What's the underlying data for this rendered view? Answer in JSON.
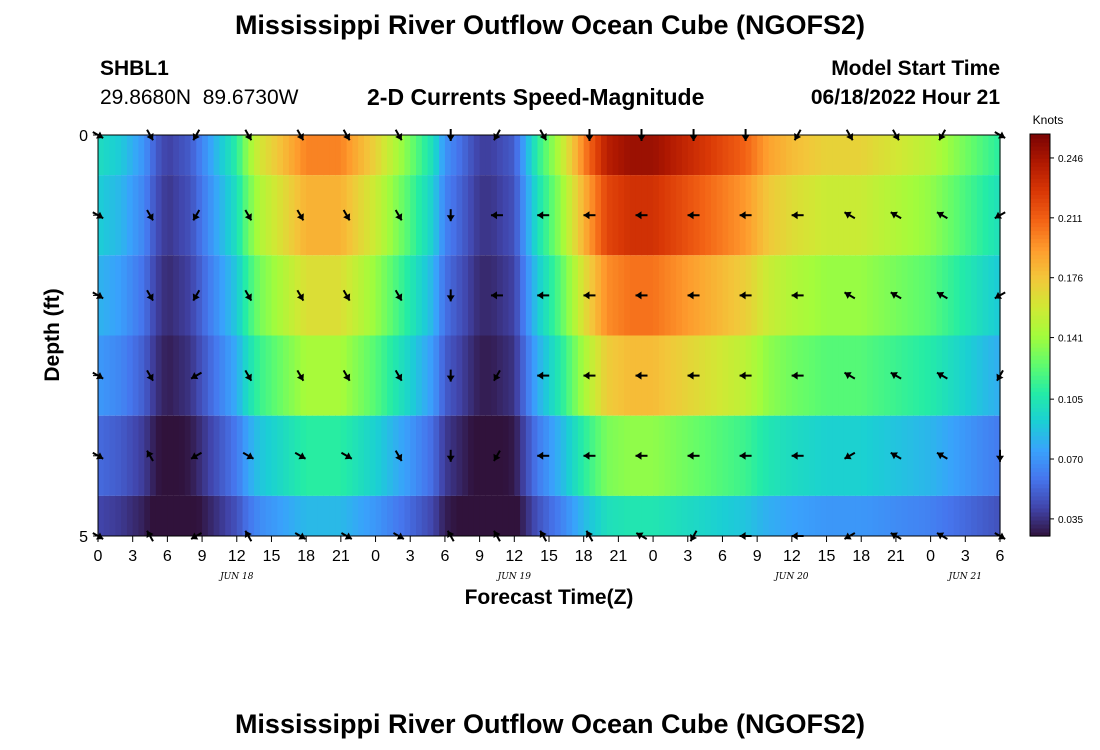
{
  "page": {
    "title": "Mississippi River Outflow Ocean Cube (NGOFS2)",
    "title_repeat": "Mississippi River Outflow Ocean Cube (NGOFS2)",
    "station_id": "SHBL1",
    "station_coords": "29.8680N  89.6730W",
    "chart_heading": "2-D Currents Speed-Magnitude",
    "model_start_label": "Model Start Time",
    "model_start_value": "06/18/2022 Hour 21"
  },
  "colors": {
    "colormap": [
      "#30123b",
      "#4145ab",
      "#4675ed",
      "#39a2fc",
      "#1bcfd4",
      "#24eca6",
      "#61fc6c",
      "#a4fc3b",
      "#d1e834",
      "#f3c63a",
      "#fe9b2d",
      "#f36315",
      "#d93806",
      "#b11901",
      "#7a0403"
    ],
    "arrow": "#000000"
  },
  "chart_data": {
    "type": "heatmap",
    "title": "2-D Currents Speed-Magnitude",
    "xlabel": "Forecast Time(Z)",
    "ylabel": "Depth (ft)",
    "y_ticks": [
      "0",
      "5"
    ],
    "ylim": [
      0,
      5
    ],
    "x_tick_labels": [
      "0",
      "3",
      "6",
      "9",
      "12",
      "15",
      "18",
      "21",
      "0",
      "3",
      "6",
      "9",
      "12",
      "15",
      "18",
      "21",
      "0",
      "3",
      "6",
      "9",
      "12",
      "15",
      "18",
      "21",
      "0",
      "3",
      "6"
    ],
    "x_tick_hours": [
      0,
      3,
      6,
      9,
      12,
      15,
      18,
      21,
      24,
      27,
      30,
      33,
      36,
      39,
      42,
      45,
      48,
      51,
      54,
      57,
      60,
      63,
      66,
      69,
      72,
      75,
      78
    ],
    "xlim_hours": [
      0,
      78
    ],
    "date_labels": [
      {
        "text": "JUN 18",
        "hour": 12
      },
      {
        "text": "JUN 19",
        "hour": 36
      },
      {
        "text": "JUN 20",
        "hour": 60
      },
      {
        "text": "JUN 21",
        "hour": 75
      }
    ],
    "colorbar": {
      "unit": "Knots",
      "min": 0.025,
      "max": 0.26,
      "ticks": [
        "0.246",
        "0.211",
        "0.176",
        "0.141",
        "0.105",
        "0.070",
        "0.035"
      ],
      "tick_values": [
        0.246,
        0.211,
        0.176,
        0.141,
        0.105,
        0.07,
        0.035
      ]
    },
    "depth_layers": [
      0,
      1,
      2,
      3,
      4,
      5
    ],
    "profile_hours": [
      0,
      2,
      4,
      5,
      6,
      8,
      10,
      12,
      13,
      14,
      16,
      18,
      21,
      24,
      27,
      29,
      30,
      32,
      33,
      34,
      36,
      37,
      38,
      40,
      42,
      44,
      46,
      48,
      50,
      52,
      54,
      56,
      58,
      60,
      63,
      66,
      69,
      72,
      75,
      78
    ],
    "speed_profile": [
      0.1,
      0.09,
      0.07,
      0.05,
      0.04,
      0.05,
      0.08,
      0.11,
      0.14,
      0.16,
      0.18,
      0.2,
      0.2,
      0.17,
      0.13,
      0.1,
      0.07,
      0.05,
      0.04,
      0.04,
      0.05,
      0.08,
      0.11,
      0.15,
      0.2,
      0.24,
      0.25,
      0.25,
      0.24,
      0.23,
      0.22,
      0.21,
      0.19,
      0.18,
      0.17,
      0.17,
      0.16,
      0.15,
      0.13,
      0.11
    ],
    "layer_factors": [
      1.0,
      0.92,
      0.82,
      0.72,
      0.55,
      0.42
    ],
    "arrow_hours": [
      0,
      4.5,
      8.5,
      13,
      17.5,
      21.5,
      26,
      30.5,
      34.5,
      38.5,
      42.5,
      47,
      51.5,
      56,
      60.5,
      65,
      69,
      73,
      78
    ],
    "arrow_directions_deg": [
      [
        -30,
        -60,
        -120,
        -60,
        -60,
        -60,
        -60,
        -90,
        -120,
        -60,
        -90,
        -90,
        -90,
        -90,
        -120,
        -60,
        -60,
        -120,
        -30
      ],
      [
        -30,
        -60,
        -120,
        -60,
        -60,
        -60,
        -60,
        -90,
        -180,
        -180,
        -180,
        -180,
        -180,
        -180,
        -180,
        -210,
        -210,
        -210,
        -150
      ],
      [
        -30,
        -60,
        -120,
        -60,
        -60,
        -60,
        -60,
        -90,
        -180,
        -180,
        -180,
        -180,
        -180,
        -180,
        -180,
        -210,
        -210,
        -210,
        -150
      ],
      [
        -30,
        -60,
        -150,
        -60,
        -60,
        -60,
        -60,
        -90,
        -120,
        -180,
        -180,
        -180,
        -180,
        -180,
        -180,
        -210,
        -210,
        -210,
        -120
      ],
      [
        -30,
        -240,
        -150,
        -30,
        -30,
        -30,
        -60,
        -90,
        -120,
        -180,
        -180,
        -180,
        -180,
        -180,
        -180,
        -150,
        -210,
        -210,
        -90
      ],
      [
        -30,
        -240,
        -150,
        -240,
        -30,
        -30,
        -30,
        -240,
        -240,
        -240,
        -240,
        -210,
        -120,
        -180,
        -180,
        -150,
        -210,
        -210,
        -30
      ]
    ]
  }
}
